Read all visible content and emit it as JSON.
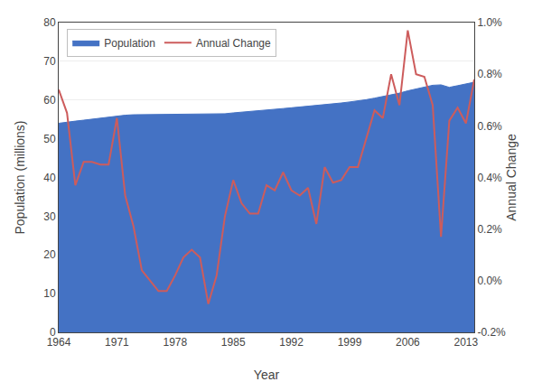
{
  "chart_data": {
    "type": "line",
    "xlabel": "Year",
    "ylabel": "Population (millions)",
    "y2label": "Annual Change",
    "x": [
      1964,
      1965,
      1966,
      1967,
      1968,
      1969,
      1970,
      1971,
      1972,
      1973,
      1974,
      1975,
      1976,
      1977,
      1978,
      1979,
      1980,
      1981,
      1982,
      1983,
      1984,
      1985,
      1986,
      1987,
      1988,
      1989,
      1990,
      1991,
      1992,
      1993,
      1994,
      1995,
      1996,
      1997,
      1998,
      1999,
      2000,
      2001,
      2002,
      2003,
      2004,
      2005,
      2006,
      2007,
      2008,
      2009,
      2010,
      2011,
      2012,
      2013,
      2014
    ],
    "series": [
      {
        "name": "Population",
        "type": "area",
        "color": "#4472C4",
        "values": [
          54.0,
          54.35,
          54.55,
          54.8,
          55.05,
          55.3,
          55.55,
          55.9,
          56.08,
          56.2,
          56.22,
          56.22,
          56.2,
          56.18,
          56.19,
          56.24,
          56.31,
          56.36,
          56.31,
          56.32,
          56.46,
          56.68,
          56.85,
          57.0,
          57.15,
          57.36,
          57.56,
          57.8,
          58.0,
          58.19,
          58.4,
          58.53,
          58.79,
          59.01,
          59.24,
          59.5,
          59.76,
          60.09,
          60.49,
          60.87,
          61.36,
          61.78,
          62.38,
          62.88,
          63.38,
          63.81,
          63.92,
          63.28,
          63.71,
          64.1,
          64.6
        ]
      },
      {
        "name": "Annual Change",
        "type": "line",
        "color": "#CD5C5C",
        "axis": "y2",
        "values": [
          0.0074,
          0.0065,
          0.0037,
          0.0046,
          0.0046,
          0.0045,
          0.0045,
          0.0063,
          0.0033,
          0.0021,
          0.0004,
          0.0,
          -0.0004,
          -0.0004,
          0.0002,
          0.0009,
          0.0012,
          0.0009,
          -0.0009,
          0.0002,
          0.0025,
          0.0039,
          0.003,
          0.0026,
          0.0026,
          0.0037,
          0.0035,
          0.0042,
          0.0035,
          0.0033,
          0.0036,
          0.0022,
          0.0044,
          0.0038,
          0.0039,
          0.0044,
          0.0044,
          0.0055,
          0.0066,
          0.0063,
          0.008,
          0.0068,
          0.0097,
          0.008,
          0.0079,
          0.0068,
          0.0017,
          0.0062,
          0.0067,
          0.0061,
          0.0078
        ]
      }
    ],
    "xlim": [
      1964,
      2014
    ],
    "xticks": [
      1964,
      1971,
      1978,
      1985,
      1992,
      1999,
      2006,
      2013
    ],
    "ylim": [
      0,
      80
    ],
    "yticks": [
      0,
      10,
      20,
      30,
      40,
      50,
      60,
      70,
      80
    ],
    "y2lim": [
      -0.002,
      0.01
    ],
    "y2ticks": [
      {
        "value": -0.002,
        "label": "-0.2%"
      },
      {
        "value": 0.0,
        "label": "0.0%"
      },
      {
        "value": 0.002,
        "label": "0.2%"
      },
      {
        "value": 0.004,
        "label": "0.4%"
      },
      {
        "value": 0.006,
        "label": "0.6%"
      },
      {
        "value": 0.008,
        "label": "0.8%"
      },
      {
        "value": 0.01,
        "label": "1.0%"
      }
    ],
    "grid": true,
    "legend": "upper left"
  }
}
